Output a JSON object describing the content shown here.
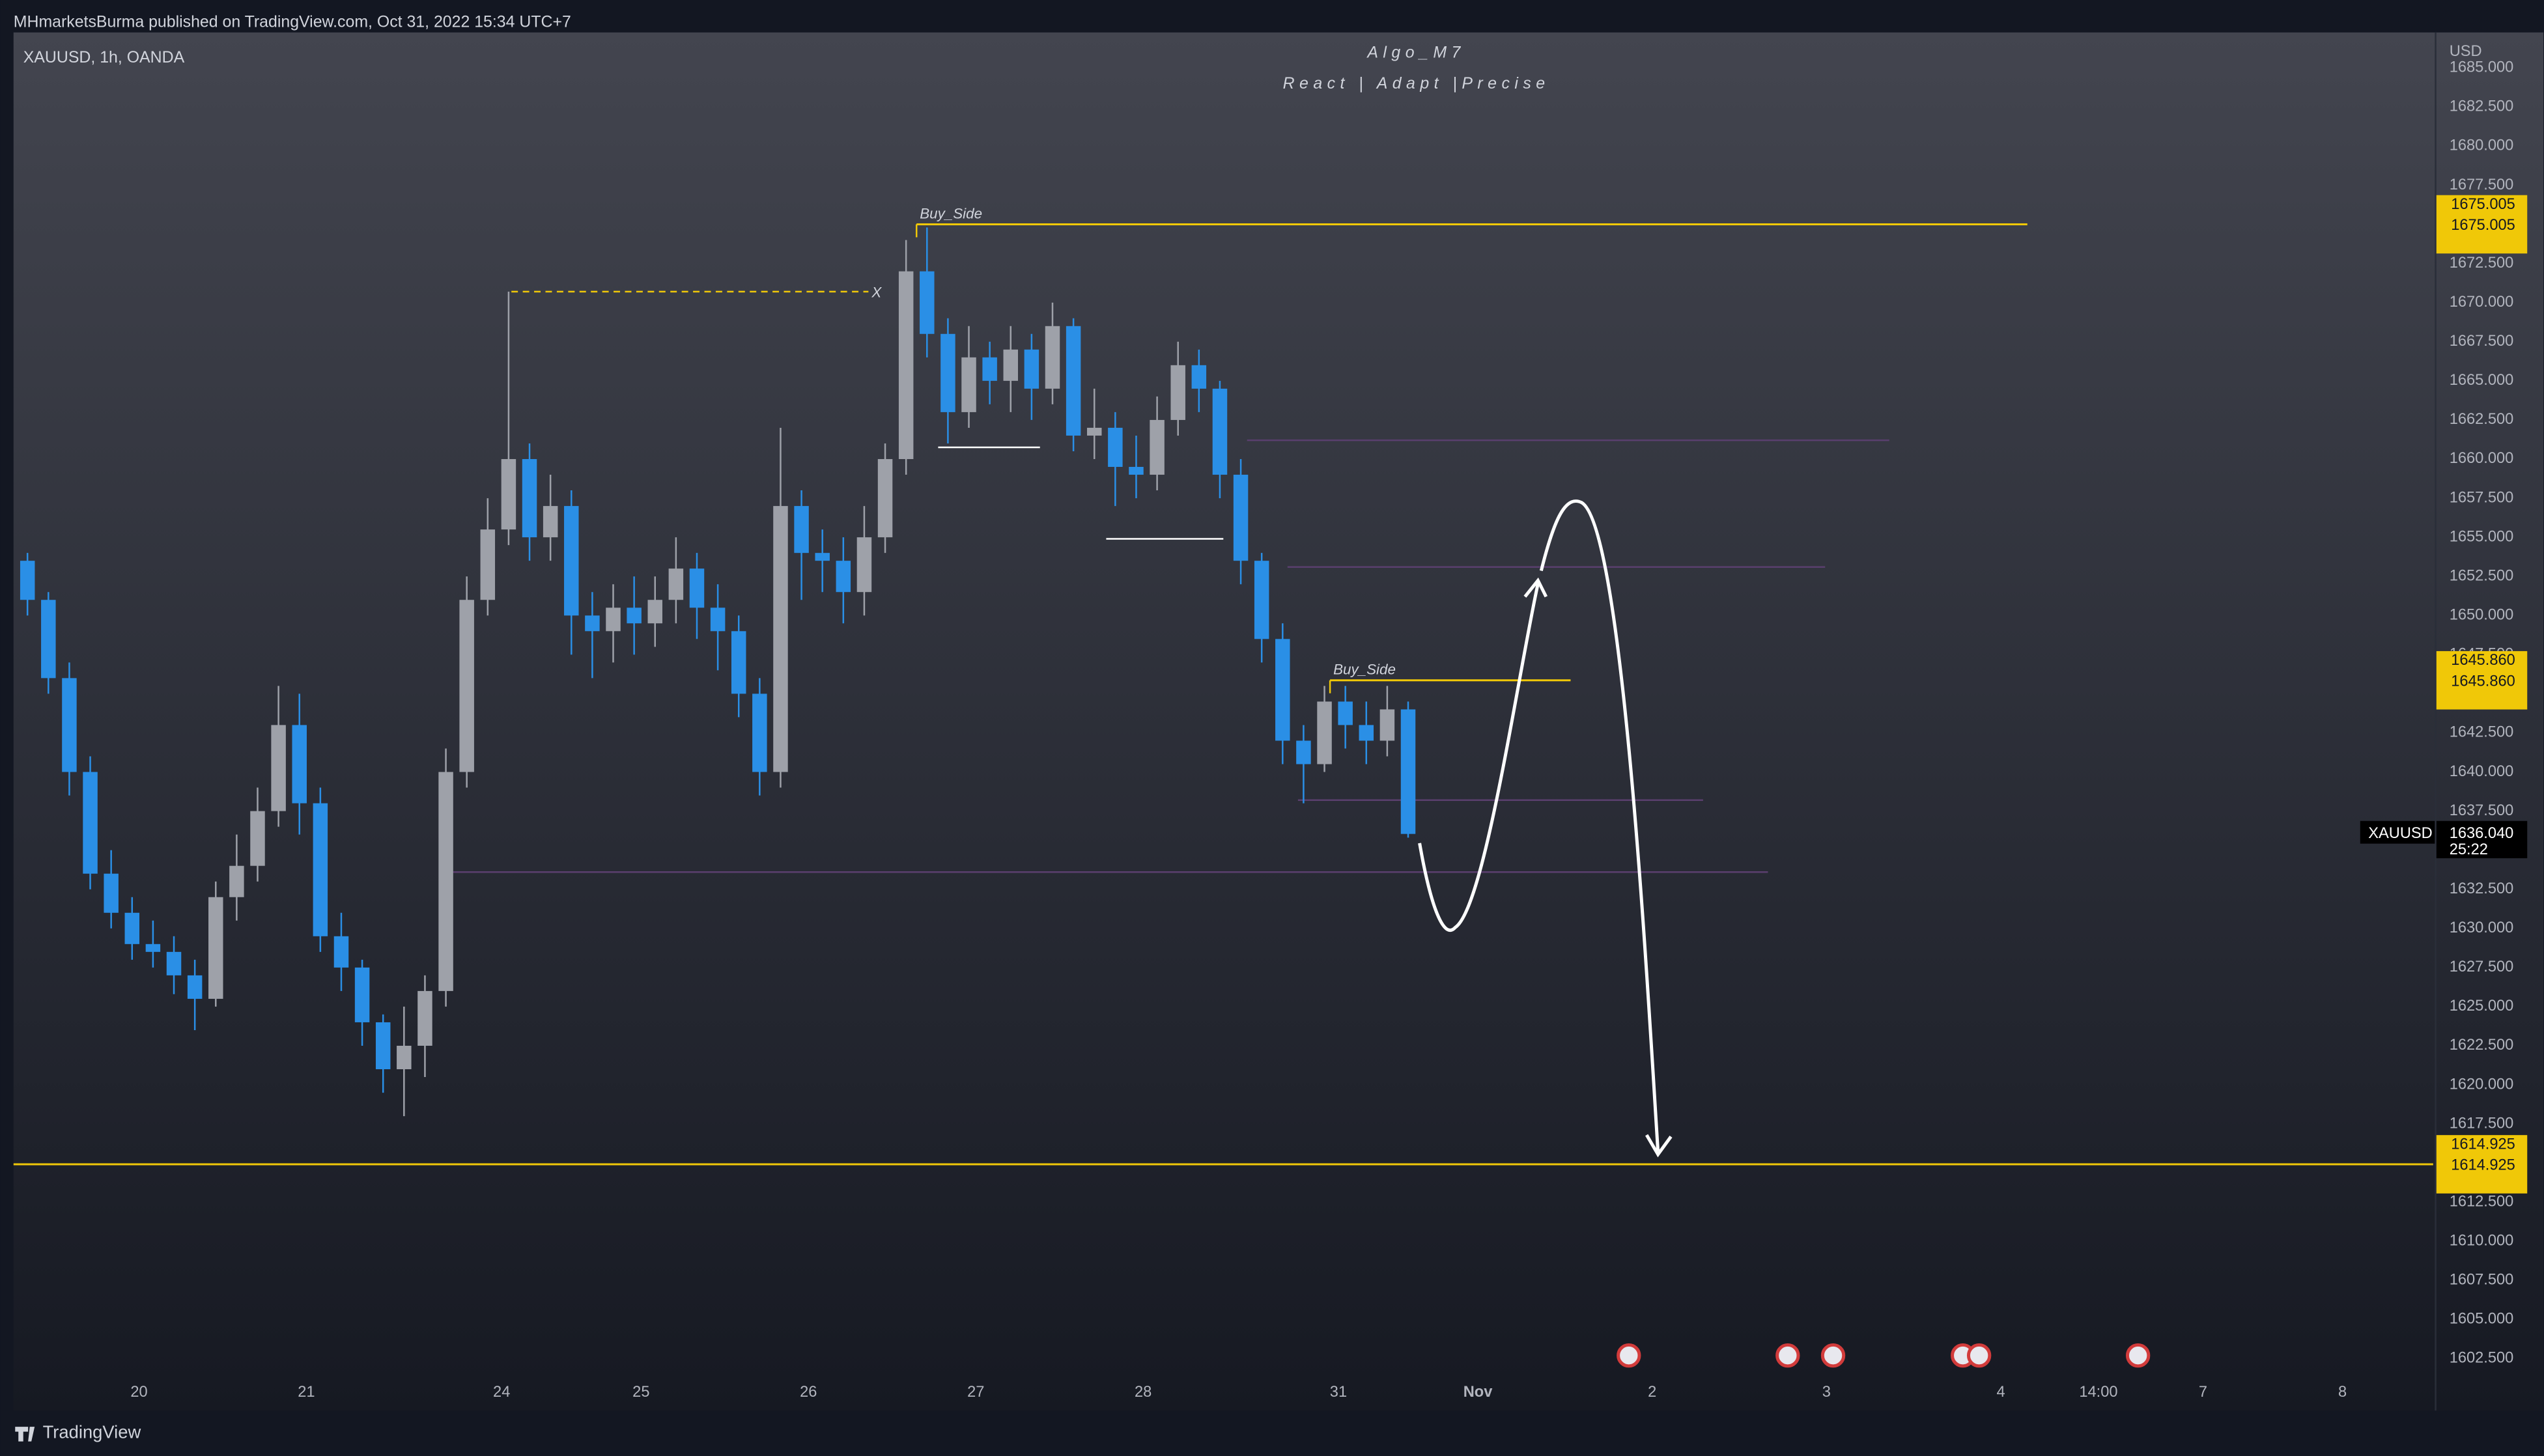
{
  "header": {
    "publisher": "MHmarketsBurma published on TradingView.com, Oct 31, 2022 15:34 UTC+7"
  },
  "footer": {
    "brand": "TradingView"
  },
  "chart_data": {
    "type": "candlestick",
    "title": "Algo_M7",
    "subtitle": "React | Adapt |Precise",
    "symbol": "XAUUSD, 1h, OANDA",
    "currency": "USD",
    "up_color": "#9ea1a9",
    "down_color": "#2a8fe6",
    "candles": {
      "x": [
        2,
        5,
        8,
        11,
        14,
        17,
        20,
        23,
        26,
        29,
        32,
        35,
        38,
        41,
        44,
        47,
        50,
        53,
        56,
        59,
        62,
        65,
        68,
        71,
        74,
        77,
        80,
        83,
        86,
        89,
        92,
        95,
        98,
        101,
        104,
        107,
        110,
        113,
        116,
        119,
        122,
        125,
        128,
        131,
        134,
        137,
        140,
        143,
        146,
        149,
        152,
        155,
        158,
        161,
        164,
        167,
        170,
        173,
        176,
        179,
        182,
        185,
        188,
        191,
        194,
        197,
        200
      ],
      "open": [
        1653.5,
        1651,
        1646,
        1640,
        1633.5,
        1631,
        1629,
        1628.5,
        1627,
        1625.5,
        1632,
        1634,
        1637.5,
        1643,
        1638,
        1629.5,
        1627.5,
        1624,
        1621,
        1622.5,
        1626,
        1640,
        1651,
        1655.5,
        1660,
        1655,
        1657,
        1650,
        1649,
        1650.5,
        1649.5,
        1651,
        1653,
        1650.5,
        1649,
        1645,
        1640,
        1657,
        1654,
        1653.5,
        1651.5,
        1655,
        1660,
        1672,
        1668,
        1663,
        1666.5,
        1665,
        1667,
        1664.5,
        1668.5,
        1661.5,
        1662,
        1659.5,
        1659,
        1662.5,
        1666,
        1664.5,
        1659,
        1653.5,
        1648.5,
        1642,
        1640.5,
        1644.5,
        1643,
        1642,
        1644
      ],
      "high": [
        1654,
        1651.5,
        1647,
        1641,
        1635,
        1632,
        1630.5,
        1629.5,
        1628,
        1633,
        1636,
        1639,
        1645.5,
        1645,
        1639,
        1631,
        1628,
        1624.5,
        1625,
        1627,
        1641.5,
        1652.5,
        1657.5,
        1670.7,
        1661,
        1659,
        1658,
        1651.5,
        1652,
        1652.5,
        1652.5,
        1655,
        1654,
        1652,
        1650,
        1646,
        1662,
        1658,
        1655.5,
        1655,
        1657,
        1661,
        1674,
        1674.8,
        1669,
        1668.5,
        1667.5,
        1668.5,
        1668,
        1670,
        1669,
        1664.5,
        1663,
        1661.5,
        1664,
        1667.5,
        1667,
        1665,
        1660,
        1654,
        1649.5,
        1643,
        1645.5,
        1645.5,
        1644.5,
        1645.5,
        1644.5
      ],
      "low": [
        1650,
        1645,
        1638.5,
        1632.5,
        1630,
        1628,
        1627.5,
        1625.8,
        1623.5,
        1625,
        1630.5,
        1633,
        1636.5,
        1636,
        1628.5,
        1626,
        1622.5,
        1619.5,
        1618,
        1620.5,
        1625,
        1639,
        1650,
        1654.5,
        1653.5,
        1653.5,
        1647.5,
        1646,
        1647,
        1647.5,
        1648,
        1649.5,
        1648.5,
        1646.5,
        1643.5,
        1638.5,
        1639,
        1651,
        1651.5,
        1649.5,
        1650,
        1654,
        1659,
        1666.5,
        1661,
        1662,
        1663.5,
        1663,
        1662.5,
        1663.5,
        1660.5,
        1660,
        1657,
        1657.5,
        1658,
        1661.5,
        1663,
        1657.5,
        1652,
        1647,
        1640.5,
        1638,
        1640,
        1641.5,
        1640.5,
        1641,
        1635.8
      ],
      "close": [
        1651,
        1646,
        1640,
        1633.5,
        1631,
        1629,
        1628.5,
        1627,
        1625.5,
        1632,
        1634,
        1637.5,
        1643,
        1638,
        1629.5,
        1627.5,
        1624,
        1621,
        1622.5,
        1626,
        1640,
        1651,
        1655.5,
        1660,
        1655,
        1657,
        1650,
        1649,
        1650.5,
        1649.5,
        1651,
        1653,
        1650.5,
        1649,
        1645,
        1640,
        1657,
        1654,
        1653.5,
        1651.5,
        1655,
        1660,
        1672,
        1668,
        1663,
        1666.5,
        1665,
        1667,
        1664.5,
        1668.5,
        1661.5,
        1662,
        1659.5,
        1659,
        1662.5,
        1666,
        1664.5,
        1659,
        1653.5,
        1648.5,
        1642,
        1640.5,
        1644.5,
        1643,
        1642,
        1644,
        1636.04
      ]
    },
    "xlim": [
      0,
      347
    ],
    "xticks": [
      {
        "value": 18,
        "label": "20"
      },
      {
        "value": 42,
        "label": "21"
      },
      {
        "value": 70,
        "label": "24"
      },
      {
        "value": 90,
        "label": "25"
      },
      {
        "value": 114,
        "label": "26"
      },
      {
        "value": 138,
        "label": "27"
      },
      {
        "value": 162,
        "label": "28"
      },
      {
        "value": 190,
        "label": "31"
      },
      {
        "value": 210,
        "label": "Nov"
      },
      {
        "value": 235,
        "label": "2"
      },
      {
        "value": 260,
        "label": "3"
      },
      {
        "value": 285,
        "label": "4"
      },
      {
        "value": 299,
        "label": "14:00"
      },
      {
        "value": 314,
        "label": "7"
      },
      {
        "value": 334,
        "label": "8"
      }
    ],
    "ylim": [
      1599.18,
      1687.27
    ],
    "yticks": [
      {
        "value": 1602.5,
        "label": "1602.500"
      },
      {
        "value": 1605,
        "label": "1605.000"
      },
      {
        "value": 1607.5,
        "label": "1607.500"
      },
      {
        "value": 1610,
        "label": "1610.000"
      },
      {
        "value": 1612.5,
        "label": "1612.500"
      },
      {
        "value": 1615,
        "label": "1615.000"
      },
      {
        "value": 1617.5,
        "label": "1617.500"
      },
      {
        "value": 1620,
        "label": "1620.000"
      },
      {
        "value": 1622.5,
        "label": "1622.500"
      },
      {
        "value": 1625,
        "label": "1625.000"
      },
      {
        "value": 1627.5,
        "label": "1627.500"
      },
      {
        "value": 1630,
        "label": "1630.000"
      },
      {
        "value": 1632.5,
        "label": "1632.500"
      },
      {
        "value": 1635,
        "label": "1635.000"
      },
      {
        "value": 1637.5,
        "label": "1637.500"
      },
      {
        "value": 1640,
        "label": "1640.000"
      },
      {
        "value": 1642.5,
        "label": "1642.500"
      },
      {
        "value": 1645,
        "label": "1645.000"
      },
      {
        "value": 1647.5,
        "label": "1647.500"
      },
      {
        "value": 1650,
        "label": "1650.000"
      },
      {
        "value": 1652.5,
        "label": "1652.500"
      },
      {
        "value": 1655,
        "label": "1655.000"
      },
      {
        "value": 1657.5,
        "label": "1657.500"
      },
      {
        "value": 1660,
        "label": "1660.000"
      },
      {
        "value": 1662.5,
        "label": "1662.500"
      },
      {
        "value": 1665,
        "label": "1665.000"
      },
      {
        "value": 1667.5,
        "label": "1667.500"
      },
      {
        "value": 1670,
        "label": "1670.000"
      },
      {
        "value": 1672.5,
        "label": "1672.500"
      },
      {
        "value": 1675,
        "label": "1675.000"
      },
      {
        "value": 1677.5,
        "label": "1677.500"
      },
      {
        "value": 1680,
        "label": "1680.000"
      },
      {
        "value": 1682.5,
        "label": "1682.500"
      },
      {
        "value": 1685,
        "label": "1685.000"
      }
    ],
    "grid": false,
    "levels": [
      {
        "name": "Buy_Side",
        "value": 1675.005,
        "value_label": "1675.005",
        "x": [
          129.5,
          288.8
        ],
        "color": "#f0c808"
      },
      {
        "name": "Buy_Side",
        "value": 1645.86,
        "value_label": "1645.860",
        "x": [
          188.8,
          223.3
        ],
        "color": "#f0c808"
      },
      {
        "value": 1614.925,
        "value_label": "1614.925",
        "color": "#f0c808"
      }
    ],
    "marks": [
      {
        "name": "X",
        "value": 1670.7,
        "x": [
          71.4,
          122.6
        ],
        "color": "#f0c808",
        "dash": true
      },
      {
        "value": 1660.75,
        "x": [
          132.6,
          147.2
        ],
        "color": "#ffffff"
      },
      {
        "value": 1654.9,
        "x": [
          156.7,
          173.5
        ],
        "color": "#ffffff"
      },
      {
        "value": 1661.2,
        "x": [
          176.9,
          269
        ],
        "color": "#5a3f6e"
      },
      {
        "value": 1653.1,
        "x": [
          182.7,
          259.8
        ],
        "color": "#5a3f6e"
      },
      {
        "value": 1638.2,
        "x": [
          184.2,
          242.3
        ],
        "color": "#5a3f6e"
      },
      {
        "value": 1633.6,
        "x": [
          62.1,
          251.6
        ],
        "color": "#5a3f6e"
      }
    ],
    "last": {
      "symbol": "XAUUSD",
      "value": 1636.04,
      "value_label": "1636.040",
      "countdown": "25:22"
    }
  }
}
